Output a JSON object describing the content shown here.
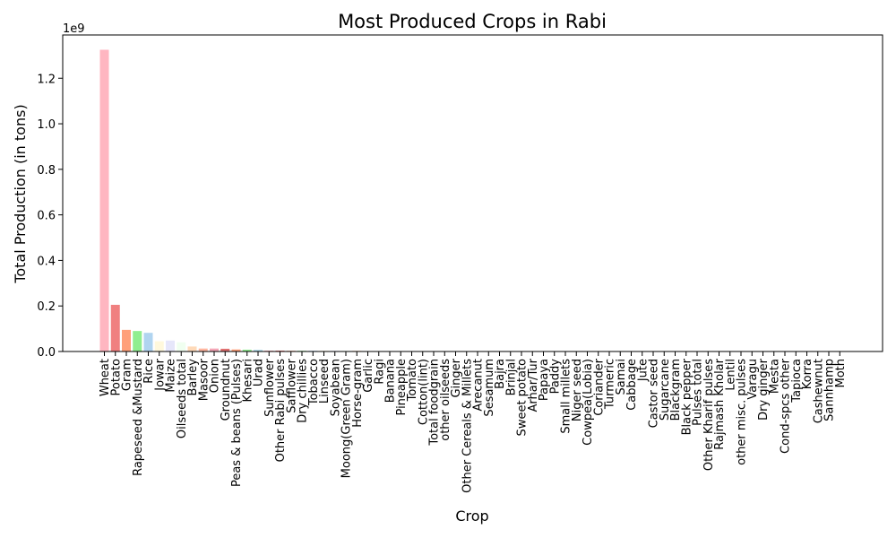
{
  "chart_data": {
    "type": "bar",
    "title": "Most Produced Crops in Rabi",
    "xlabel": "Crop",
    "ylabel": "Total Production (in tons)",
    "y_scale_label": "1e9",
    "ylim": [
      0,
      1.39
    ],
    "yticks": [
      0.0,
      0.2,
      0.4,
      0.6,
      0.8,
      1.0,
      1.2
    ],
    "ytick_labels": [
      "0.0",
      "0.2",
      "0.4",
      "0.6",
      "0.8",
      "1.0",
      "1.2"
    ],
    "grid": false,
    "legend": "none",
    "bar_colors": [
      "#ffb6c1",
      "#f08080",
      "#ffa07a",
      "#90ee90",
      "#b0d4f0",
      "#fff8dc",
      "#e6e6fa",
      "#f0fff0",
      "#ffdab9",
      "#ffb6a0",
      "#f4a6b6",
      "#e07070",
      "#ffa07a",
      "#90ee90",
      "#a8d8e8"
    ],
    "categories": [
      "Wheat",
      "Potato",
      "Gram",
      "Rapeseed &Mustard",
      "Rice",
      "Jowar",
      "Maize",
      "Oilseeds total",
      "Barley",
      "Masoor",
      "Onion",
      "Groundnut",
      "Peas & beans (Pulses)",
      "Khesari",
      "Urad",
      "Sunflower",
      "Other  Rabi pulses",
      "Safflower",
      "Dry chillies",
      "Tobacco",
      "Linseed",
      "Soyabean",
      "Moong(Green Gram)",
      "Horse-gram",
      "Garlic",
      "Ragi",
      "Banana",
      "Pineapple",
      "Tomato",
      "Cotton(lint)",
      "Total foodgrain",
      "other oilseeds",
      "Ginger",
      "Other Cereals & Millets",
      "Arecanut",
      "Sesamum",
      "Bajra",
      "Brinjal",
      "Sweet potato",
      "Arhar/Tur",
      "Papaya",
      "Paddy",
      "Small millets",
      "Niger seed",
      "Cowpea(Lobia)",
      "Coriander",
      "Turmeric",
      "Samai",
      "Cabbage",
      "Jute",
      "Castor seed",
      "Sugarcane",
      "Blackgram",
      "Black pepper",
      "Pulses total",
      "Other Kharif pulses",
      "Rajmash Kholar",
      "Lentil",
      "other misc. pulses",
      "Varagu",
      "Dry ginger",
      "Mesta",
      "Cond-spcs other",
      "Tapioca",
      "Korra",
      "Cashewnut",
      "Sannhamp",
      "Moth"
    ],
    "values": [
      1.325,
      0.205,
      0.095,
      0.09,
      0.082,
      0.045,
      0.048,
      0.04,
      0.022,
      0.013,
      0.013,
      0.012,
      0.009,
      0.008,
      0.007,
      0.004,
      0.004,
      0.003,
      0.003,
      0.003,
      0.003,
      0.003,
      0.003,
      0.003,
      0.002,
      0.001,
      0.001,
      0.001,
      0.001,
      0.0008,
      0.0007,
      0.0006,
      0.0005,
      0.0005,
      0.0004,
      0.0004,
      0.0004,
      0.0003,
      0.0003,
      0.0003,
      0.0003,
      0.0003,
      0.0002,
      0.0002,
      0.0002,
      0.0002,
      0.0002,
      0.0002,
      0.0002,
      0.0001,
      0.0001,
      0.0001,
      0.0001,
      0.0001,
      0.0001,
      0.0001,
      0.0001,
      0.0001,
      0.0001,
      0.0001,
      0.0001,
      0.0001,
      0.0001,
      0.0001,
      0.0001,
      0.0001,
      0.0001,
      0.0001
    ]
  }
}
